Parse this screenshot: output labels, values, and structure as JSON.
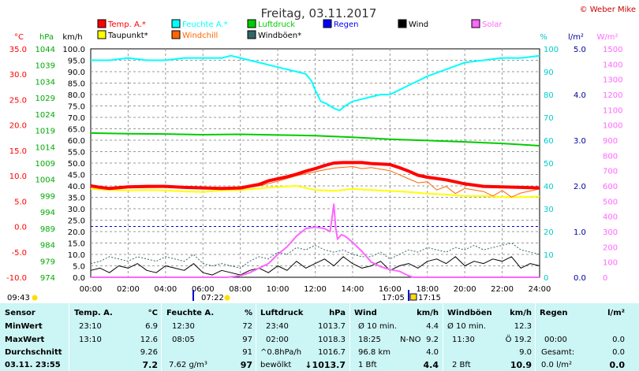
{
  "chart_data": {
    "type": "line",
    "title": "Freitag, 03.11.2017",
    "copyright": "© Weber Mike",
    "x_ticks": [
      "00:00",
      "02:00",
      "04:00",
      "06:00",
      "08:00",
      "10:00",
      "12:00",
      "14:00",
      "16:00",
      "18:00",
      "20:00",
      "22:00",
      "24:00"
    ],
    "x_range": [
      0,
      24
    ],
    "legend": [
      {
        "label": "Temp. A.*",
        "color": "#ff0000"
      },
      {
        "label": "Feuchte A.*",
        "color": "#00ffff"
      },
      {
        "label": "Luftdruck",
        "color": "#00cc00"
      },
      {
        "label": "Regen",
        "color": "#0000ff"
      },
      {
        "label": "Wind",
        "color": "#000000"
      },
      {
        "label": "Solar",
        "color": "#ff66ff"
      },
      {
        "label": "Taupunkt*",
        "color": "#ffff00"
      },
      {
        "label": "Windchill",
        "color": "#ff6600"
      },
      {
        "label": "Windböen*",
        "color": "#336666"
      }
    ],
    "axes": {
      "temp": {
        "unit": "°C",
        "range": [
          -10,
          35
        ],
        "ticks": [
          "35.0",
          "30.0",
          "25.0",
          "20.0",
          "15.0",
          "10.0",
          "5.0",
          "0.0",
          "-5.0",
          "-10.0"
        ],
        "color": "#ff0000"
      },
      "pressure": {
        "unit": "hPa",
        "range": [
          974,
          1044
        ],
        "ticks": [
          "1044",
          "1039",
          "1034",
          "1029",
          "1024",
          "1019",
          "1014",
          "1009",
          "1004",
          "999",
          "994",
          "989",
          "984",
          "979",
          "974"
        ],
        "color": "#00aa00"
      },
      "wind": {
        "unit": "km/h",
        "range": [
          0,
          100
        ],
        "ticks": [
          "100.0",
          "95.0",
          "90.0",
          "85.0",
          "80.0",
          "75.0",
          "70.0",
          "65.0",
          "60.0",
          "55.0",
          "50.0",
          "45.0",
          "40.0",
          "35.0",
          "30.0",
          "25.0",
          "20.0",
          "15.0",
          "10.0",
          "5.0",
          "0.0"
        ],
        "color": "#000000"
      },
      "humidity": {
        "unit": "%",
        "range": [
          0,
          100
        ],
        "ticks": [
          "100",
          "90",
          "80",
          "70",
          "60",
          "50",
          "40",
          "30",
          "20",
          "10",
          "0"
        ],
        "color": "#00cccc"
      },
      "rain": {
        "unit": "l/m²",
        "range": [
          0,
          5
        ],
        "ticks": [
          "5.0",
          "4.0",
          "3.0",
          "2.0",
          "1.0",
          "0.0"
        ],
        "color": "#000099"
      },
      "solar": {
        "unit": "W/m²",
        "range": [
          0,
          1500
        ],
        "ticks": [
          "1500",
          "1400",
          "1300",
          "1200",
          "1100",
          "1000",
          "900",
          "800",
          "700",
          "600",
          "500",
          "400",
          "300",
          "200",
          "100",
          "0"
        ],
        "color": "#ff66ff"
      }
    },
    "series": [
      {
        "name": "Temp. A.*",
        "axis": "temp",
        "color": "#ff0000",
        "x": [
          0,
          0.5,
          1,
          2,
          3,
          4,
          5,
          6,
          7,
          8,
          9,
          9.5,
          10,
          10.5,
          11,
          11.5,
          12,
          12.5,
          13,
          13.5,
          14,
          14.5,
          15,
          15.5,
          16,
          16.5,
          17,
          17.5,
          18,
          19,
          20,
          21,
          22,
          23,
          24
        ],
        "y": [
          8.0,
          7.7,
          7.5,
          7.8,
          7.9,
          7.9,
          7.7,
          7.6,
          7.5,
          7.6,
          8.3,
          9.0,
          9.4,
          9.8,
          10.3,
          10.9,
          11.4,
          12.0,
          12.5,
          12.6,
          12.6,
          12.6,
          12.4,
          12.3,
          12.2,
          11.6,
          10.9,
          10.1,
          9.7,
          9.2,
          8.4,
          7.9,
          7.8,
          7.7,
          7.6
        ]
      },
      {
        "name": "Feuchte A.*",
        "axis": "humidity",
        "color": "#00ffff",
        "x": [
          0,
          1,
          2,
          3,
          4,
          5,
          6,
          7,
          7.5,
          8,
          8.5,
          9,
          9.5,
          10,
          10.5,
          11,
          11.5,
          11.8,
          12,
          12.3,
          12.6,
          13,
          13.3,
          13.6,
          14,
          14.5,
          15,
          15.5,
          16,
          16.5,
          17,
          17.5,
          18,
          19,
          20,
          21,
          22,
          23,
          24
        ],
        "y": [
          95,
          95,
          96,
          95,
          95,
          96,
          96,
          96,
          97,
          96,
          95,
          94,
          93,
          92,
          91,
          90,
          89,
          86,
          82,
          77,
          76,
          74,
          73,
          75,
          77,
          78,
          79,
          80,
          80,
          82,
          84,
          86,
          88,
          91,
          94,
          95,
          96,
          96,
          97
        ]
      },
      {
        "name": "Luftdruck",
        "axis": "pressure",
        "color": "#00cc00",
        "x": [
          0,
          2,
          4,
          6,
          8,
          10,
          12,
          14,
          16,
          18,
          20,
          22,
          24
        ],
        "y": [
          1018.2,
          1018.0,
          1017.9,
          1017.7,
          1017.8,
          1017.6,
          1017.4,
          1016.9,
          1016.3,
          1015.9,
          1015.5,
          1015.0,
          1014.3
        ]
      },
      {
        "name": "Taupunkt*",
        "axis": "temp",
        "color": "#ffff00",
        "x": [
          0,
          1,
          2,
          3,
          4,
          5,
          6,
          7,
          8,
          9,
          10,
          11,
          12,
          13,
          14,
          15,
          16,
          17,
          18,
          19,
          20,
          21,
          22,
          23,
          24
        ],
        "y": [
          7.4,
          7.2,
          7.1,
          7.2,
          7.1,
          6.9,
          6.8,
          7.1,
          7.2,
          7.5,
          7.8,
          8.0,
          7.2,
          7.0,
          7.4,
          7.2,
          7.0,
          6.8,
          6.5,
          6.3,
          6.0,
          6.0,
          5.8,
          5.8,
          5.9
        ]
      },
      {
        "name": "Windchill",
        "axis": "temp",
        "color": "#ff6600",
        "x": [
          0,
          2,
          4,
          6,
          8,
          9,
          10,
          11,
          12,
          13,
          14,
          14.5,
          15,
          15.5,
          16,
          16.5,
          17,
          17.5,
          18,
          18.5,
          19,
          19.5,
          20,
          21,
          21.5,
          22,
          22.5,
          23,
          24
        ],
        "y": [
          7.8,
          7.6,
          7.7,
          7.5,
          7.5,
          8.0,
          8.9,
          10.0,
          10.8,
          11.5,
          11.8,
          11.4,
          11.6,
          11.3,
          11.0,
          10.2,
          9.4,
          8.6,
          8.8,
          7.2,
          7.9,
          6.5,
          7.5,
          6.9,
          6.0,
          7.1,
          5.8,
          6.6,
          7.4
        ]
      },
      {
        "name": "Wind",
        "axis": "wind",
        "color": "#000000",
        "x": [
          0,
          0.5,
          1,
          1.5,
          2,
          2.5,
          3,
          3.5,
          4,
          4.5,
          5,
          5.5,
          6,
          6.5,
          7,
          7.5,
          8,
          8.5,
          9,
          9.5,
          10,
          10.5,
          11,
          11.5,
          12,
          12.5,
          13,
          13.5,
          14,
          14.5,
          15,
          15.5,
          16,
          16.5,
          17,
          17.5,
          18,
          18.5,
          19,
          19.5,
          20,
          20.5,
          21,
          21.5,
          22,
          22.5,
          23,
          23.5,
          24
        ],
        "y": [
          3,
          4,
          2,
          5,
          4,
          6,
          3,
          2,
          5,
          4,
          3,
          6,
          2,
          1,
          3,
          2,
          1,
          3,
          4,
          2,
          5,
          3,
          7,
          4,
          6,
          8,
          5,
          9,
          6,
          4,
          5,
          7,
          3,
          5,
          6,
          4,
          7,
          8,
          6,
          9,
          5,
          7,
          6,
          8,
          7,
          9,
          4,
          6,
          5
        ]
      },
      {
        "name": "Windböen*",
        "axis": "wind",
        "color": "#336666",
        "x": [
          0,
          0.5,
          1,
          1.5,
          2,
          2.5,
          3,
          3.5,
          4,
          4.5,
          5,
          5.5,
          6,
          6.5,
          7,
          7.5,
          8,
          8.5,
          9,
          9.5,
          10,
          10.5,
          11,
          11.5,
          12,
          12.5,
          13,
          13.5,
          14,
          14.5,
          15,
          15.5,
          16,
          16.5,
          17,
          17.5,
          18,
          18.5,
          19,
          19.5,
          20,
          20.5,
          21,
          21.5,
          22,
          22.5,
          23,
          23.5,
          24
        ],
        "y": [
          6,
          7,
          9,
          8,
          7,
          9,
          8,
          7,
          9,
          8,
          7,
          10,
          6,
          5,
          6,
          5,
          4,
          7,
          9,
          8,
          11,
          10,
          13,
          12,
          14,
          12,
          11,
          12,
          10,
          9,
          9,
          11,
          8,
          10,
          12,
          11,
          13,
          12,
          11,
          13,
          12,
          14,
          12,
          13,
          14,
          15,
          12,
          11,
          10
        ]
      },
      {
        "name": "Solar",
        "axis": "solar",
        "color": "#ff66ff",
        "x": [
          0,
          7.3,
          8,
          8.5,
          9,
          9.5,
          10,
          10.5,
          11,
          11.5,
          12,
          12.5,
          12.8,
          13,
          13.1,
          13.2,
          13.4,
          13.6,
          14,
          14.5,
          15,
          15.5,
          16,
          16.5,
          17,
          17.25,
          24
        ],
        "y": [
          0,
          0,
          10,
          30,
          60,
          90,
          150,
          200,
          270,
          320,
          330,
          320,
          300,
          480,
          320,
          250,
          280,
          270,
          230,
          170,
          100,
          70,
          50,
          40,
          10,
          0,
          0
        ]
      }
    ]
  },
  "markers": {
    "sunrise_left": "09:43",
    "sunrise": "07:22",
    "sunset": "17:05",
    "sunset2": "17:15"
  },
  "stats": {
    "headers": {
      "sensor": "Sensor",
      "temp": "Temp. A.",
      "temp_unit": "°C",
      "hum": "Feuchte A.",
      "hum_unit": "%",
      "press": "Luftdruck",
      "press_unit": "hPa",
      "wind": "Wind",
      "wind_unit": "km/h",
      "gust": "Windböen",
      "gust_unit": "km/h",
      "rain": "Regen",
      "rain_unit": "l/m²"
    },
    "minwert": {
      "label": "MinWert",
      "temp_time": "23:10",
      "temp_val": "6.9",
      "hum_time": "12:30",
      "hum_val": "72",
      "press_time": "23:40",
      "press_val": "1013.7",
      "wind_desc": "Ø 10 min.",
      "wind_val": "4.4",
      "gust_desc": "Ø 10 min.",
      "gust_val": "12.3",
      "rain_desc": "",
      "rain_val": ""
    },
    "maxwert": {
      "label": "MaxWert",
      "temp_time": "13:10",
      "temp_val": "12.6",
      "hum_time": "08:05",
      "hum_val": "97",
      "press_time": "02:00",
      "press_val": "1018.3",
      "wind_time": "18:25",
      "wind_dir": "N-NO",
      "wind_val": "9.2",
      "gust_time": "11:30",
      "gust_val": "Ö 19.2",
      "rain_time": "00:00",
      "rain_val": "0.0"
    },
    "avg": {
      "label": "Durchschnitt",
      "temp_val": "9.26",
      "hum_val": "91",
      "press_desc": "^0.8hPa/h",
      "press_val": "1016.7",
      "wind_desc": "96.8 km",
      "wind_val": "4.0",
      "gust_val": "9.0",
      "rain_desc": "Gesamt:",
      "rain_val": "0.0"
    },
    "current": {
      "label": "03.11. 23:55",
      "temp_val": "7.2",
      "hum_desc": "7.62 g/m³",
      "hum_val": "97",
      "press_desc": "bewölkt",
      "press_val": "↓1013.7",
      "wind_desc": "1 Bft",
      "wind_val": "4.4",
      "gust_desc": "2 Bft",
      "gust_val": "10.9",
      "rain_desc": "0.0 l/m²",
      "rain_val": "0.0"
    }
  }
}
